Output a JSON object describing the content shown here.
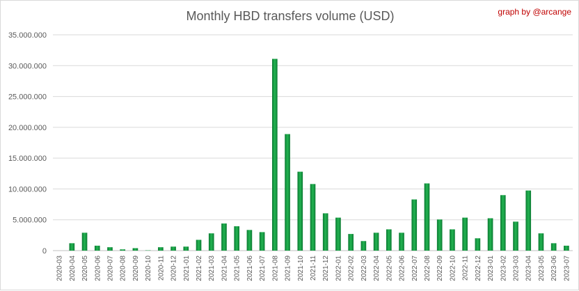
{
  "chart_data": {
    "type": "bar",
    "title": "Monthly HBD transfers volume (USD)",
    "credit": "graph by @arcange",
    "xlabel": "",
    "ylabel": "",
    "ylim": [
      0,
      35000000
    ],
    "yticks": [
      0,
      5000000,
      10000000,
      15000000,
      20000000,
      25000000,
      30000000,
      35000000
    ],
    "ytick_labels": [
      "0",
      "5.000.000",
      "10.000.000",
      "15.000.000",
      "20.000.000",
      "25.000.000",
      "30.000.000",
      "35.000.000"
    ],
    "grid": true,
    "legend": "none",
    "bar_color": "#1a9e48",
    "categories": [
      "2020-03",
      "2020-04",
      "2020-05",
      "2020-06",
      "2020-07",
      "2020-08",
      "2020-09",
      "2020-10",
      "2020-11",
      "2020-12",
      "2021-01",
      "2021-02",
      "2021-03",
      "2021-04",
      "2021-05",
      "2021-06",
      "2021-07",
      "2021-08",
      "2021-09",
      "2021-10",
      "2021-11",
      "2021-12",
      "2022-01",
      "2022-02",
      "2022-03",
      "2022-04",
      "2022-05",
      "2022-06",
      "2022-07",
      "2022-08",
      "2022-09",
      "2022-10",
      "2022-11",
      "2022-12",
      "2023-01",
      "2023-02",
      "2023-03",
      "2023-04",
      "2023-05",
      "2023-06",
      "2023-07"
    ],
    "values": [
      0,
      1200000,
      2900000,
      800000,
      550000,
      200000,
      400000,
      50000,
      550000,
      650000,
      650000,
      1750000,
      2800000,
      4400000,
      3950000,
      3350000,
      3000000,
      31100000,
      18900000,
      12800000,
      10800000,
      6050000,
      5350000,
      2700000,
      1550000,
      2900000,
      3450000,
      2900000,
      8300000,
      10900000,
      5050000,
      3450000,
      5350000,
      2000000,
      5250000,
      9000000,
      4700000,
      9750000,
      2800000,
      1200000,
      800000
    ]
  }
}
